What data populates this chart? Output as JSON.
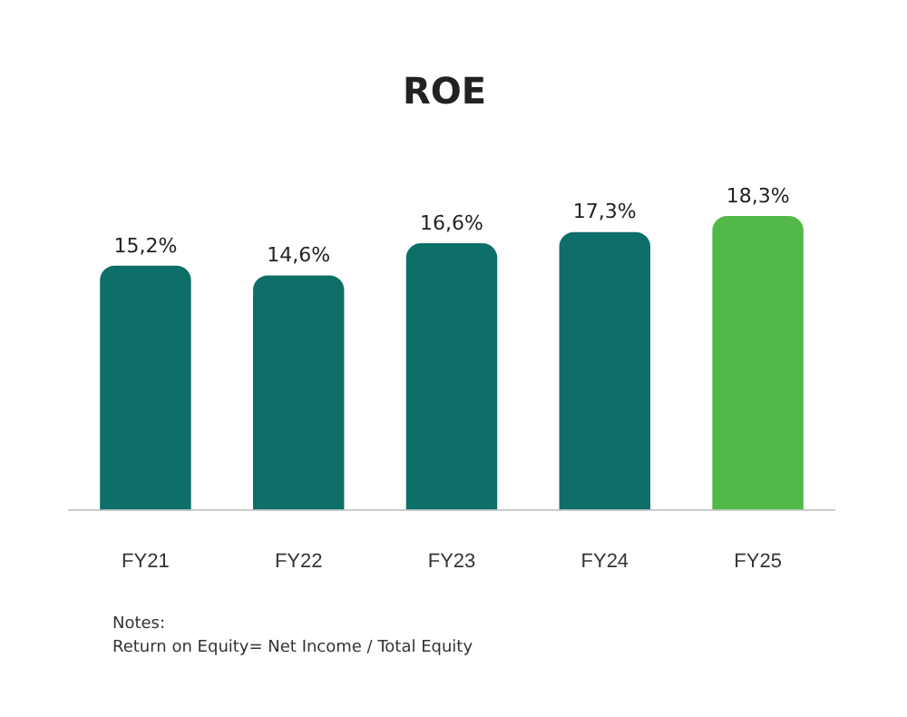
{
  "chart_data": {
    "type": "bar",
    "title": "ROE",
    "categories": [
      "FY21",
      "FY22",
      "FY23",
      "FY24",
      "FY25"
    ],
    "values": [
      15.2,
      14.6,
      16.6,
      17.3,
      18.3
    ],
    "colors": [
      "#0e6e68",
      "#0e6e68",
      "#0e6e68",
      "#0e6e68",
      "#52b848"
    ],
    "value_labels": [
      "15,2%",
      "14,6%",
      "16,6%",
      "17,3%",
      "18,3%"
    ],
    "relative": false,
    "annotations": [
      "Notes:",
      "Return on Equity= Net Income / Total Equity"
    ]
  }
}
